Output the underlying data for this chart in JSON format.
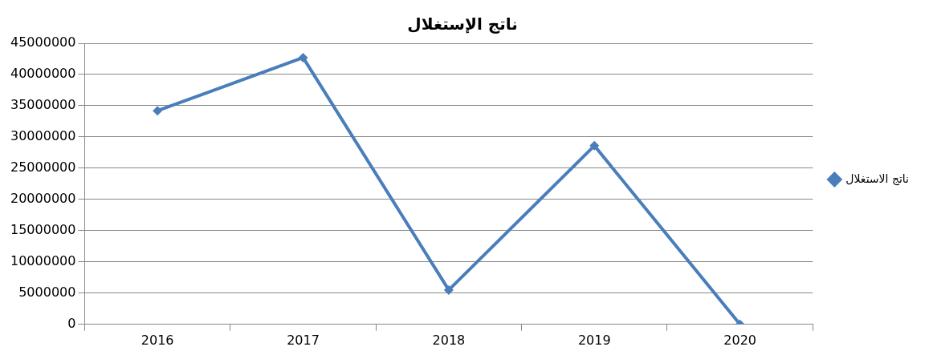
{
  "chart_data": {
    "type": "line",
    "title": "ناتج الإستغلال",
    "categories": [
      "2016",
      "2017",
      "2018",
      "2019",
      "2020"
    ],
    "series": [
      {
        "name": "ناتج الاستغلال",
        "color": "#4a7ebb",
        "values": [
          34200000,
          42700000,
          5500000,
          28600000,
          0
        ]
      }
    ],
    "ylim": [
      0,
      45000000
    ],
    "yticks": [
      0,
      5000000,
      10000000,
      15000000,
      20000000,
      25000000,
      30000000,
      35000000,
      40000000,
      45000000
    ],
    "grid": "y",
    "legend": "right",
    "marker": "diamond",
    "line_style": "solid"
  }
}
